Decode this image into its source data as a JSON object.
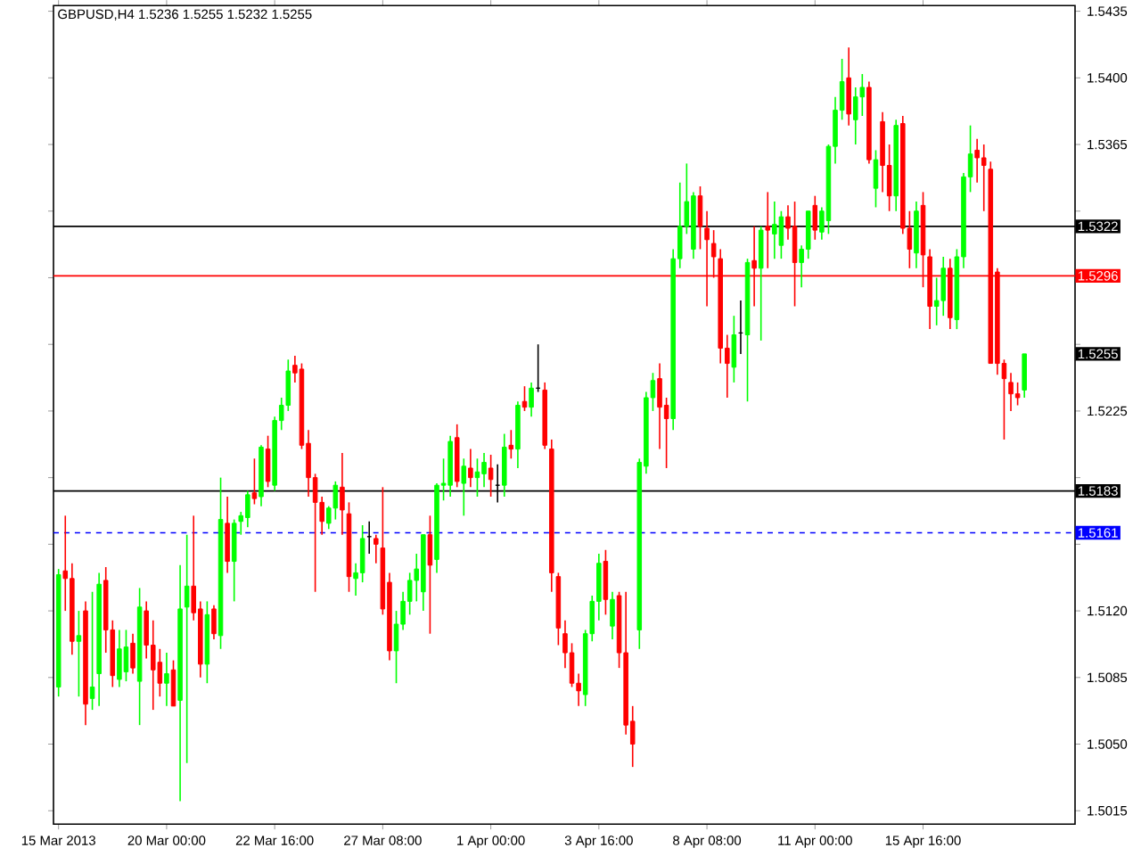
{
  "chart_data": {
    "type": "candlestick",
    "title": "GBPUSD,H4  1.5236 1.5255 1.5232 1.5255",
    "categories": [
      "15 Mar 2013",
      null,
      null,
      null,
      null,
      null,
      null,
      null,
      null,
      null,
      null,
      null,
      null,
      null,
      null,
      null,
      "20 Mar 00:00",
      null,
      null,
      null,
      null,
      null,
      null,
      null,
      null,
      null,
      null,
      null,
      null,
      null,
      null,
      null,
      "22 Mar 16:00",
      null,
      null,
      null,
      null,
      null,
      null,
      null,
      null,
      null,
      null,
      null,
      null,
      null,
      null,
      null,
      "27 Mar 08:00",
      null,
      null,
      null,
      null,
      null,
      null,
      null,
      null,
      null,
      null,
      null,
      null,
      null,
      null,
      null,
      "1 Apr 00:00",
      null,
      null,
      null,
      null,
      null,
      null,
      null,
      null,
      null,
      null,
      null,
      null,
      null,
      null,
      null,
      "3 Apr 16:00",
      null,
      null,
      null,
      null,
      null,
      null,
      null,
      null,
      null,
      null,
      null,
      null,
      null,
      null,
      null,
      "8 Apr 08:00",
      null,
      null,
      null,
      null,
      null,
      null,
      null,
      null,
      null,
      null,
      null,
      null,
      null,
      null,
      null,
      "11 Apr 00:00",
      null,
      null,
      null,
      null,
      null,
      null,
      null,
      null,
      null,
      null,
      null,
      null,
      null,
      null,
      null,
      "15 Apr 16:00",
      null,
      null,
      null,
      null,
      null,
      null,
      null,
      null,
      null,
      null,
      null,
      null,
      null,
      null,
      null
    ],
    "ohlc": [
      [
        1.508,
        1.5142,
        1.5075,
        1.5139
      ],
      [
        1.5141,
        1.517,
        1.512,
        1.5137
      ],
      [
        1.5137,
        1.5145,
        1.5097,
        1.5104
      ],
      [
        1.5104,
        1.512,
        1.5075,
        1.5107
      ],
      [
        1.512,
        1.5125,
        1.506,
        1.5071
      ],
      [
        1.5074,
        1.513,
        1.5068,
        1.508
      ],
      [
        1.5087,
        1.514,
        1.507,
        1.5134
      ],
      [
        1.5136,
        1.5143,
        1.5098,
        1.511
      ],
      [
        1.511,
        1.5115,
        1.508,
        1.5086
      ],
      [
        1.5084,
        1.511,
        1.508,
        1.51
      ],
      [
        1.5088,
        1.511,
        1.5083,
        1.5101
      ],
      [
        1.5103,
        1.5108,
        1.5087,
        1.509
      ],
      [
        1.5083,
        1.5132,
        1.506,
        1.5122
      ],
      [
        1.512,
        1.5125,
        1.5095,
        1.5102
      ],
      [
        1.5102,
        1.5115,
        1.5068,
        1.5089
      ],
      [
        1.5093,
        1.51,
        1.5075,
        1.5082
      ],
      [
        1.5082,
        1.5098,
        1.507,
        1.5087
      ],
      [
        1.5089,
        1.5094,
        1.507,
        1.507
      ],
      [
        1.5073,
        1.5144,
        1.502,
        1.5121
      ],
      [
        1.5122,
        1.516,
        1.504,
        1.5133
      ],
      [
        1.5133,
        1.517,
        1.5115,
        1.5119
      ],
      [
        1.5121,
        1.5125,
        1.5085,
        1.5092
      ],
      [
        1.5092,
        1.5125,
        1.5082,
        1.5118
      ],
      [
        1.5121,
        1.5123,
        1.5105,
        1.5108
      ],
      [
        1.5107,
        1.519,
        1.51,
        1.5168
      ],
      [
        1.5166,
        1.518,
        1.514,
        1.5146
      ],
      [
        1.5146,
        1.5168,
        1.5125,
        1.5166
      ],
      [
        1.5167,
        1.5172,
        1.516,
        1.517
      ],
      [
        1.5169,
        1.5183,
        1.5164,
        1.5181
      ],
      [
        1.5182,
        1.52,
        1.5176,
        1.5179
      ],
      [
        1.518,
        1.5207,
        1.5175,
        1.5206
      ],
      [
        1.5205,
        1.5212,
        1.5185,
        1.5188
      ],
      [
        1.5186,
        1.5222,
        1.5183,
        1.522
      ],
      [
        1.522,
        1.5232,
        1.5215,
        1.5228
      ],
      [
        1.5228,
        1.5252,
        1.5225,
        1.5246
      ],
      [
        1.5249,
        1.5254,
        1.524,
        1.5245
      ],
      [
        1.5247,
        1.525,
        1.5205,
        1.5207
      ],
      [
        1.5208,
        1.5215,
        1.518,
        1.519
      ],
      [
        1.519,
        1.5192,
        1.513,
        1.5177
      ],
      [
        1.5177,
        1.518,
        1.516,
        1.5167
      ],
      [
        1.5166,
        1.5175,
        1.5163,
        1.5174
      ],
      [
        1.5174,
        1.5188,
        1.5168,
        1.5186
      ],
      [
        1.5185,
        1.5203,
        1.516,
        1.5173
      ],
      [
        1.5171,
        1.5177,
        1.513,
        1.5138
      ],
      [
        1.5137,
        1.5145,
        1.5128,
        1.514
      ],
      [
        1.514,
        1.5165,
        1.5135,
        1.5158
      ],
      [
        1.5159,
        1.5167,
        1.515,
        1.5159
      ],
      [
        1.5158,
        1.516,
        1.5145,
        1.5155
      ],
      [
        1.5153,
        1.5185,
        1.5118,
        1.5121
      ],
      [
        1.5135,
        1.514,
        1.5094,
        1.5099
      ],
      [
        1.5099,
        1.512,
        1.5082,
        1.5113
      ],
      [
        1.5113,
        1.513,
        1.511,
        1.5125
      ],
      [
        1.5125,
        1.514,
        1.5118,
        1.5136
      ],
      [
        1.5136,
        1.515,
        1.5125,
        1.5142
      ],
      [
        1.513,
        1.516,
        1.512,
        1.516
      ],
      [
        1.516,
        1.517,
        1.5108,
        1.5144
      ],
      [
        1.5147,
        1.5187,
        1.514,
        1.5186
      ],
      [
        1.5186,
        1.52,
        1.5178,
        1.5187
      ],
      [
        1.5186,
        1.5212,
        1.518,
        1.5209
      ],
      [
        1.5211,
        1.5218,
        1.5185,
        1.5188
      ],
      [
        1.5187,
        1.52,
        1.517,
        1.5196
      ],
      [
        1.5195,
        1.5205,
        1.5185,
        1.519
      ],
      [
        1.519,
        1.52,
        1.518,
        1.5193
      ],
      [
        1.5192,
        1.5203,
        1.5185,
        1.5198
      ],
      [
        1.5195,
        1.5202,
        1.518,
        1.5189
      ],
      [
        1.5186,
        1.5197,
        1.5177,
        1.5186
      ],
      [
        1.5186,
        1.5213,
        1.518,
        1.5206
      ],
      [
        1.5207,
        1.5215,
        1.52,
        1.5205
      ],
      [
        1.5205,
        1.523,
        1.5195,
        1.5228
      ],
      [
        1.523,
        1.5238,
        1.5225,
        1.5227
      ],
      [
        1.5227,
        1.524,
        1.5222,
        1.5237
      ],
      [
        1.5237,
        1.526,
        1.5235,
        1.5237
      ],
      [
        1.5236,
        1.524,
        1.5205,
        1.5207
      ],
      [
        1.5205,
        1.521,
        1.513,
        1.514
      ],
      [
        1.5138,
        1.514,
        1.5102,
        1.5111
      ],
      [
        1.5108,
        1.5115,
        1.509,
        1.5098
      ],
      [
        1.5098,
        1.5103,
        1.508,
        1.5082
      ],
      [
        1.5082,
        1.5087,
        1.507,
        1.5078
      ],
      [
        1.5076,
        1.511,
        1.507,
        1.5108
      ],
      [
        1.5108,
        1.5128,
        1.5104,
        1.5125
      ],
      [
        1.5125,
        1.515,
        1.5115,
        1.5145
      ],
      [
        1.5146,
        1.5152,
        1.5118,
        1.5126
      ],
      [
        1.5112,
        1.513,
        1.5105,
        1.5126
      ],
      [
        1.5128,
        1.513,
        1.509,
        1.5098
      ],
      [
        1.5098,
        1.513,
        1.5055,
        1.506
      ],
      [
        1.5062,
        1.507,
        1.5038,
        1.505
      ],
      [
        1.511,
        1.52,
        1.51,
        1.5198
      ],
      [
        1.5196,
        1.5235,
        1.5192,
        1.5232
      ],
      [
        1.5232,
        1.5245,
        1.5225,
        1.5241
      ],
      [
        1.5242,
        1.525,
        1.5205,
        1.5227
      ],
      [
        1.5228,
        1.5232,
        1.5195,
        1.5221
      ],
      [
        1.5221,
        1.531,
        1.5215,
        1.5305
      ],
      [
        1.5305,
        1.5345,
        1.53,
        1.5322
      ],
      [
        1.5322,
        1.5355,
        1.5318,
        1.5335
      ],
      [
        1.531,
        1.534,
        1.5305,
        1.5338
      ],
      [
        1.5338,
        1.5343,
        1.531,
        1.5322
      ],
      [
        1.5321,
        1.533,
        1.528,
        1.5315
      ],
      [
        1.5313,
        1.532,
        1.5295,
        1.5306
      ],
      [
        1.5305,
        1.531,
        1.525,
        1.5258
      ],
      [
        1.5258,
        1.5265,
        1.5232,
        1.525
      ],
      [
        1.5248,
        1.5275,
        1.524,
        1.5265
      ],
      [
        1.5266,
        1.5283,
        1.5255,
        1.5266
      ],
      [
        1.5265,
        1.5305,
        1.523,
        1.5303
      ],
      [
        1.5304,
        1.5322,
        1.528,
        1.53
      ],
      [
        1.53,
        1.5322,
        1.5262,
        1.532
      ],
      [
        1.5322,
        1.534,
        1.53,
        1.532
      ],
      [
        1.5318,
        1.5335,
        1.5305,
        1.5323
      ],
      [
        1.5312,
        1.533,
        1.5305,
        1.5327
      ],
      [
        1.5327,
        1.5333,
        1.5315,
        1.5321
      ],
      [
        1.5322,
        1.5335,
        1.528,
        1.5303
      ],
      [
        1.5303,
        1.5312,
        1.529,
        1.531
      ],
      [
        1.531,
        1.533,
        1.5305,
        1.533
      ],
      [
        1.5333,
        1.5338,
        1.5315,
        1.532
      ],
      [
        1.5319,
        1.5332,
        1.5315,
        1.533
      ],
      [
        1.5325,
        1.5365,
        1.5318,
        1.5364
      ],
      [
        1.5364,
        1.539,
        1.5355,
        1.5383
      ],
      [
        1.5383,
        1.541,
        1.5378,
        1.5398
      ],
      [
        1.54,
        1.5416,
        1.5375,
        1.5381
      ],
      [
        1.5378,
        1.5395,
        1.5365,
        1.539
      ],
      [
        1.539,
        1.5402,
        1.538,
        1.5395
      ],
      [
        1.5395,
        1.5398,
        1.5355,
        1.5357
      ],
      [
        1.5342,
        1.5362,
        1.5332,
        1.5357
      ],
      [
        1.5377,
        1.5382,
        1.534,
        1.5354
      ],
      [
        1.5354,
        1.5365,
        1.533,
        1.5338
      ],
      [
        1.5338,
        1.5378,
        1.533,
        1.5375
      ],
      [
        1.5376,
        1.538,
        1.5318,
        1.5321
      ],
      [
        1.5321,
        1.533,
        1.53,
        1.531
      ],
      [
        1.5308,
        1.5335,
        1.53,
        1.533
      ],
      [
        1.5333,
        1.534,
        1.529,
        1.5307
      ],
      [
        1.5306,
        1.531,
        1.5268,
        1.528
      ],
      [
        1.528,
        1.5295,
        1.527,
        1.5283
      ],
      [
        1.5283,
        1.5306,
        1.5275,
        1.53
      ],
      [
        1.53,
        1.5305,
        1.5268,
        1.5274
      ],
      [
        1.5273,
        1.531,
        1.5268,
        1.5306
      ],
      [
        1.5306,
        1.535,
        1.53,
        1.5348
      ],
      [
        1.5348,
        1.5375,
        1.534,
        1.536
      ],
      [
        1.5362,
        1.5368,
        1.5345,
        1.5358
      ],
      [
        1.5358,
        1.5365,
        1.533,
        1.5354
      ],
      [
        1.5352,
        1.5356,
        1.525,
        1.525
      ],
      [
        1.5298,
        1.53,
        1.5244,
        1.525
      ],
      [
        1.525,
        1.5252,
        1.521,
        1.5242
      ],
      [
        1.524,
        1.5245,
        1.5225,
        1.5234
      ],
      [
        1.5234,
        1.524,
        1.5228,
        1.5232
      ],
      [
        1.5236,
        1.5255,
        1.5232,
        1.5255
      ]
    ],
    "colors": [
      "#00ff00",
      "#ff0000",
      "#ff0000",
      "#00ff00",
      "#ff0000",
      "#00ff00",
      "#00ff00",
      "#ff0000",
      "#ff0000",
      "#00ff00",
      "#00ff00",
      "#ff0000",
      "#00ff00",
      "#ff0000",
      "#ff0000",
      "#ff0000",
      "#00ff00",
      "#ff0000",
      "#00ff00",
      "#00ff00",
      "#ff0000",
      "#ff0000",
      "#00ff00",
      "#ff0000",
      "#00ff00",
      "#ff0000",
      "#00ff00",
      "#00ff00",
      "#00ff00",
      "#ff0000",
      "#00ff00",
      "#ff0000",
      "#00ff00",
      "#00ff00",
      "#00ff00",
      "#ff0000",
      "#ff0000",
      "#ff0000",
      "#ff0000",
      "#ff0000",
      "#00ff00",
      "#00ff00",
      "#ff0000",
      "#ff0000",
      "#00ff00",
      "#00ff00",
      "#000000",
      "#ff0000",
      "#ff0000",
      "#ff0000",
      "#00ff00",
      "#00ff00",
      "#00ff00",
      "#00ff00",
      "#00ff00",
      "#ff0000",
      "#00ff00",
      "#00ff00",
      "#00ff00",
      "#ff0000",
      "#00ff00",
      "#ff0000",
      "#00ff00",
      "#00ff00",
      "#ff0000",
      "#000000",
      "#00ff00",
      "#ff0000",
      "#00ff00",
      "#ff0000",
      "#00ff00",
      "#000000",
      "#ff0000",
      "#ff0000",
      "#ff0000",
      "#ff0000",
      "#ff0000",
      "#ff0000",
      "#00ff00",
      "#00ff00",
      "#00ff00",
      "#ff0000",
      "#00ff00",
      "#ff0000",
      "#ff0000",
      "#ff0000",
      "#00ff00",
      "#00ff00",
      "#00ff00",
      "#ff0000",
      "#ff0000",
      "#00ff00",
      "#00ff00",
      "#00ff00",
      "#00ff00",
      "#ff0000",
      "#ff0000",
      "#ff0000",
      "#ff0000",
      "#ff0000",
      "#00ff00",
      "#000000",
      "#00ff00",
      "#ff0000",
      "#00ff00",
      "#ff0000",
      "#00ff00",
      "#00ff00",
      "#ff0000",
      "#ff0000",
      "#00ff00",
      "#00ff00",
      "#ff0000",
      "#00ff00",
      "#00ff00",
      "#00ff00",
      "#00ff00",
      "#ff0000",
      "#00ff00",
      "#00ff00",
      "#ff0000",
      "#00ff00",
      "#ff0000",
      "#ff0000",
      "#00ff00",
      "#ff0000",
      "#ff0000",
      "#00ff00",
      "#ff0000",
      "#ff0000",
      "#00ff00",
      "#00ff00",
      "#ff0000",
      "#00ff00",
      "#00ff00",
      "#00ff00",
      "#ff0000",
      "#ff0000",
      "#ff0000",
      "#ff0000",
      "#ff0000",
      "#ff0000",
      "#ff0000",
      "#00ff00"
    ],
    "ylim": [
      1.5008,
      1.5438
    ],
    "yticks": [
      1.5015,
      {
        "value": 1.505,
        "label": "1.5050"
      },
      1.5085,
      {
        "value": 1.512,
        "label": "1.5120"
      },
      {
        "value": 1.5155,
        "label": null
      },
      {
        "value": 1.519,
        "label": null
      },
      1.5225,
      {
        "value": 1.526,
        "label": null
      },
      {
        "value": 1.5295,
        "label": null
      },
      {
        "value": 1.533,
        "label": null
      },
      1.5365,
      {
        "value": 1.54,
        "label": "1.5400"
      },
      1.5435
    ],
    "ref_lines": [
      {
        "axis": "y",
        "value": 1.5322,
        "label": "1.5322",
        "color": "#000000",
        "line_style": "solid"
      },
      {
        "axis": "y",
        "value": 1.5296,
        "label": "1.5296",
        "color": "#ff0000",
        "line_style": "solid"
      },
      {
        "axis": "y",
        "value": 1.5183,
        "label": "1.5183",
        "color": "#000000",
        "line_style": "solid"
      },
      {
        "axis": "y",
        "value": 1.5161,
        "label": "1.5161",
        "color": "#0000ff",
        "line_style": "dashed"
      }
    ],
    "annotations": [
      "1.5255"
    ]
  }
}
